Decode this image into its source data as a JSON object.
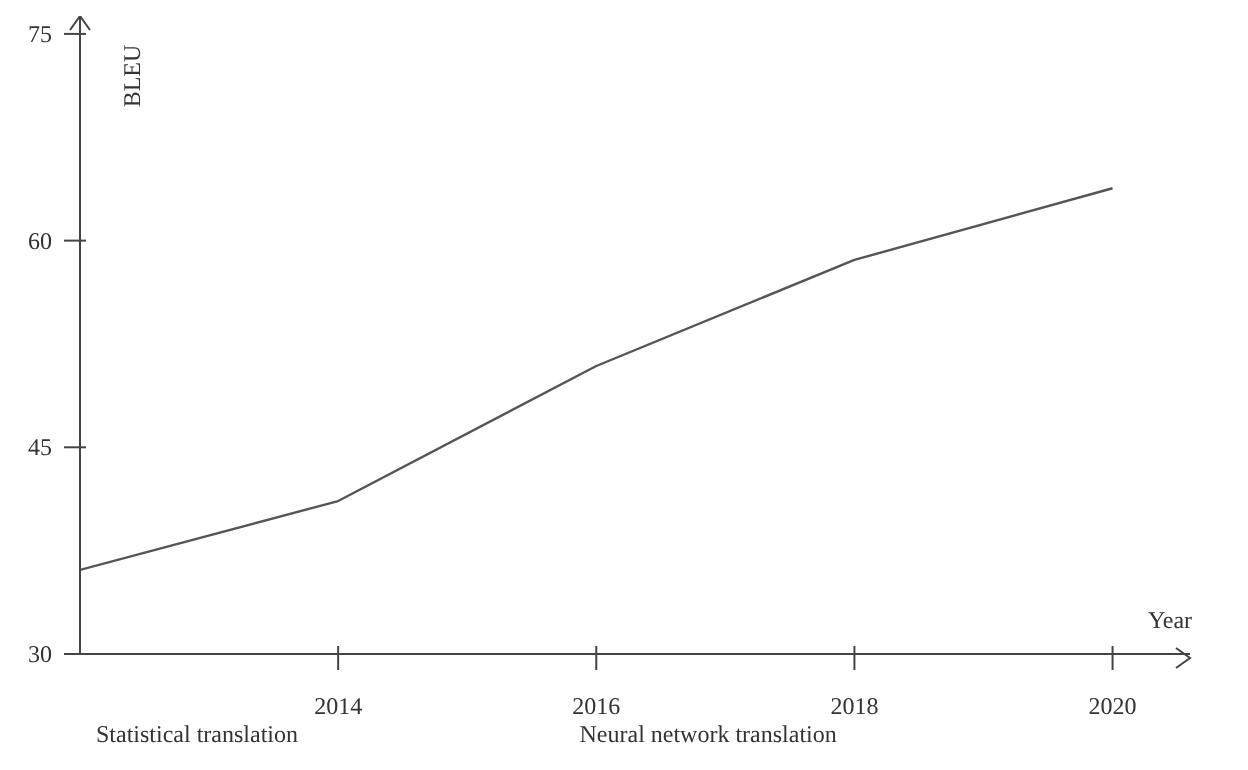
{
  "chart_data": {
    "type": "line",
    "xlabel": "Year",
    "ylabel": "BLEU",
    "x": [
      2012,
      2014,
      2016,
      2018,
      2020
    ],
    "series": [
      {
        "color": "#555555",
        "values": [
          36.1,
          41.1,
          50.9,
          58.6,
          63.8
        ]
      }
    ],
    "xlim": [
      2012,
      2020.6
    ],
    "xticks": [
      2014,
      2016,
      2018,
      2020
    ],
    "ylim": [
      30,
      76.3
    ],
    "yticks": [
      30,
      45,
      60,
      75
    ],
    "marker": "none",
    "line_style": "solid",
    "annotations": [
      "Statistical translation",
      "Neural network translation"
    ]
  }
}
